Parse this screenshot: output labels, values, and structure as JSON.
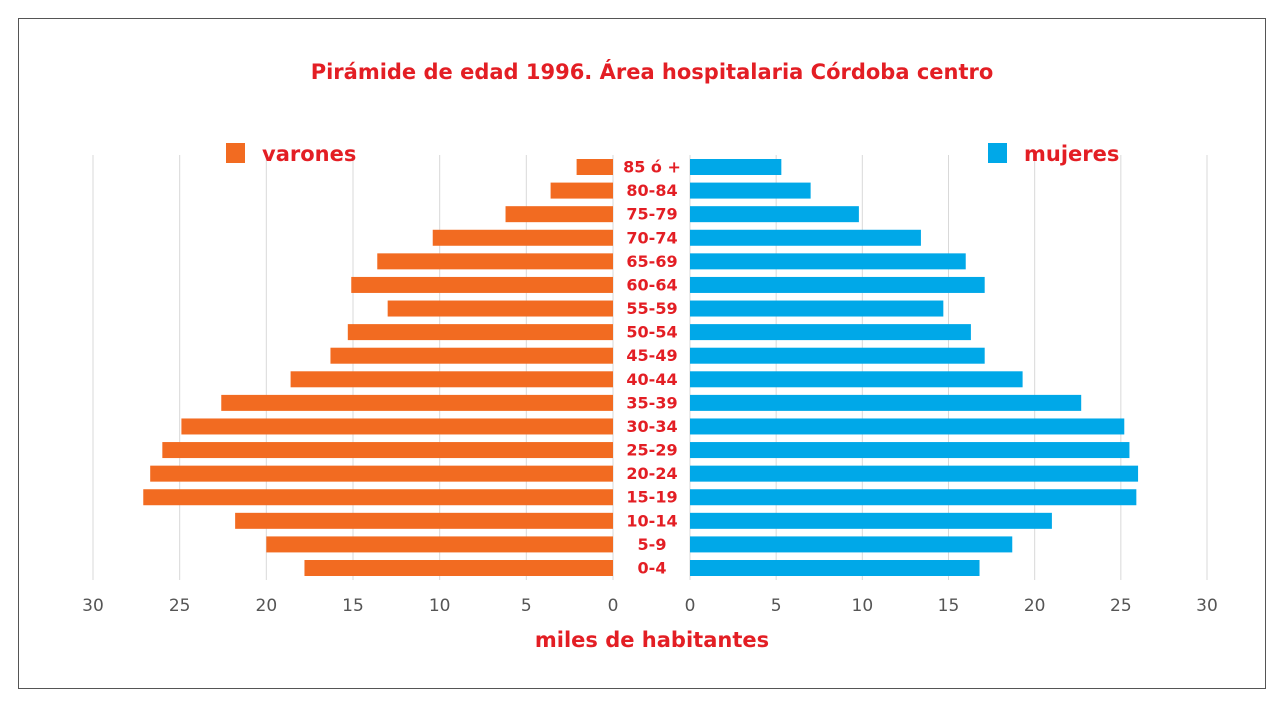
{
  "chart_data": {
    "type": "pyramid",
    "title": "Pirámide de edad 1996. Área hospitalaria Córdoba centro",
    "xlabel": "miles de habitantes",
    "categories": [
      "0-4",
      "5-9",
      "10-14",
      "15-19",
      "20-24",
      "25-29",
      "30-34",
      "35-39",
      "40-44",
      "45-49",
      "50-54",
      "55-59",
      "60-64",
      "65-69",
      "70-74",
      "75-79",
      "80-84",
      "85 ó +"
    ],
    "series": [
      {
        "name": "varones",
        "color": "#f26b21",
        "side": "left",
        "values": [
          17.8,
          20.0,
          21.8,
          27.1,
          26.7,
          26.0,
          24.9,
          22.6,
          18.6,
          16.3,
          15.3,
          13.0,
          15.1,
          13.6,
          10.4,
          6.2,
          3.6,
          2.1
        ]
      },
      {
        "name": "mujeres",
        "color": "#00a8e8",
        "side": "right",
        "values": [
          16.8,
          18.7,
          21.0,
          25.9,
          26.0,
          25.5,
          25.2,
          22.7,
          19.3,
          17.1,
          16.3,
          14.7,
          17.1,
          16.0,
          13.4,
          9.8,
          7.0,
          5.3
        ]
      }
    ],
    "xlim": [
      0,
      30
    ],
    "xticks": [
      0,
      5,
      10,
      15,
      20,
      25,
      30
    ],
    "grid": true
  }
}
